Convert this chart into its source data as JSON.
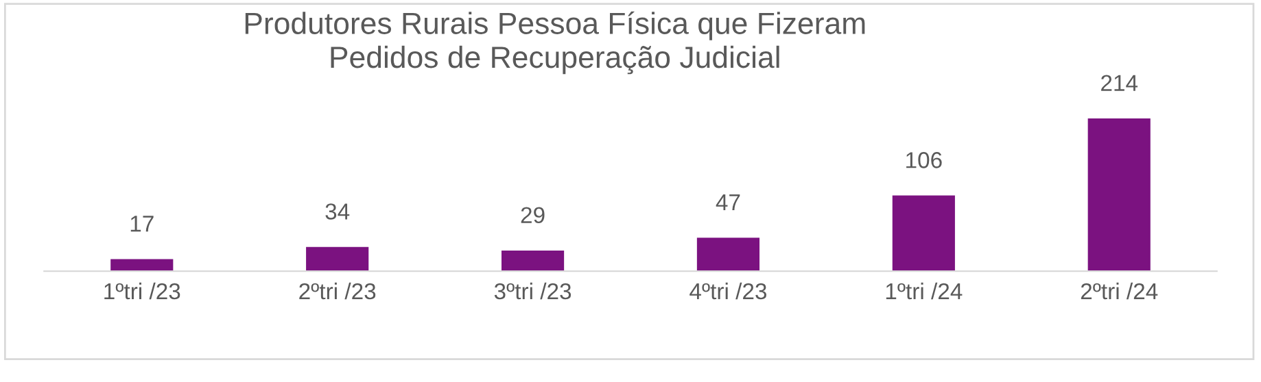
{
  "chart_data": {
    "type": "bar",
    "title": "Produtores Rurais Pessoa Física que Fizeram\nPedidos de Recuperação Judicial",
    "categories": [
      "1ºtri /23",
      "2ºtri /23",
      "3ºtri /23",
      "4ºtri /23",
      "1ºtri /24",
      "2ºtri /24"
    ],
    "values": [
      17,
      34,
      29,
      47,
      106,
      214
    ],
    "color": "#7b1280",
    "data_labels": true,
    "grid": false,
    "legend": false
  }
}
